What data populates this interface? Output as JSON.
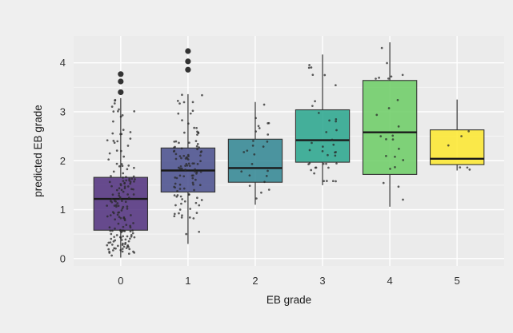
{
  "chart_data": {
    "type": "boxplot",
    "title": "",
    "xlabel": "EB grade",
    "ylabel": "predicted EB grade",
    "categories": [
      "0",
      "1",
      "2",
      "3",
      "4",
      "5"
    ],
    "xlim": [
      -0.7,
      5.7
    ],
    "ylim": [
      -0.15,
      4.55
    ],
    "y_ticks": [
      0,
      1,
      2,
      3,
      4
    ],
    "y_tick_labels": [
      "0",
      "1",
      "2",
      "3",
      "4"
    ],
    "grid": true,
    "legend": "none",
    "boxes": [
      {
        "category": "0",
        "whisker_low": 0.02,
        "q1": 0.58,
        "median": 1.22,
        "q3": 1.66,
        "whisker_high": 3.28,
        "outliers": [
          3.4,
          3.62,
          3.77
        ],
        "color": "#482677"
      },
      {
        "category": "1",
        "whisker_low": 0.3,
        "q1": 1.36,
        "median": 1.8,
        "q3": 2.26,
        "whisker_high": 3.36,
        "outliers": [
          3.86,
          4.03,
          4.24
        ],
        "color": "#404688"
      },
      {
        "category": "2",
        "whisker_low": 1.1,
        "q1": 1.56,
        "median": 1.85,
        "q3": 2.44,
        "whisker_high": 3.2,
        "outliers": [],
        "color": "#27808e"
      },
      {
        "category": "3",
        "whisker_low": 1.5,
        "q1": 1.97,
        "median": 2.42,
        "q3": 3.04,
        "whisker_high": 4.17,
        "outliers": [],
        "color": "#1fa187"
      },
      {
        "category": "4",
        "whisker_low": 1.06,
        "q1": 1.72,
        "median": 2.58,
        "q3": 3.64,
        "whisker_high": 4.42,
        "outliers": [],
        "color": "#65cb5e"
      },
      {
        "category": "5",
        "whisker_low": 1.8,
        "q1": 1.92,
        "median": 2.04,
        "q3": 2.63,
        "whisker_high": 3.25,
        "outliers": [],
        "color": "#fde725"
      }
    ],
    "jitter_points": [
      {
        "category": "0",
        "count": 170
      },
      {
        "category": "1",
        "count": 110
      },
      {
        "category": "2",
        "count": 25
      },
      {
        "category": "3",
        "count": 38
      },
      {
        "category": "4",
        "count": 24
      },
      {
        "category": "5",
        "count": 6
      }
    ]
  }
}
